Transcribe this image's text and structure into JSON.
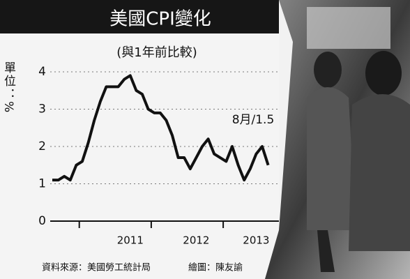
{
  "chart_data": {
    "type": "line",
    "title": "美國CPI變化",
    "subtitle": "(與1年前比較)",
    "y_label": "單位：%",
    "annotation": "8月/1.5",
    "source": "資料來源：美國勞工統計局",
    "credit": "繪圖：陳友諭",
    "categories": [
      null,
      null,
      null,
      null,
      null,
      null,
      null,
      null,
      null,
      null,
      null,
      null,
      null,
      "2011",
      null,
      null,
      null,
      null,
      null,
      null,
      null,
      null,
      null,
      null,
      "2012",
      null,
      null,
      null,
      null,
      null,
      null,
      null,
      null,
      null,
      "2013",
      null,
      null
    ],
    "series": [
      {
        "name": "CPI",
        "color": "#111111",
        "values": [
          1.1,
          1.1,
          1.2,
          1.1,
          1.5,
          1.6,
          2.1,
          2.7,
          3.2,
          3.6,
          3.6,
          3.6,
          3.8,
          3.9,
          3.5,
          3.4,
          3.0,
          2.9,
          2.9,
          2.7,
          2.3,
          1.7,
          1.7,
          1.4,
          1.7,
          2.0,
          2.2,
          1.8,
          1.7,
          1.6,
          2.0,
          1.5,
          1.1,
          1.4,
          1.8,
          2.0,
          1.5
        ]
      }
    ],
    "ylim": [
      0,
      4
    ],
    "yticks": [
      0,
      1,
      2,
      3,
      4
    ],
    "grid": true
  }
}
